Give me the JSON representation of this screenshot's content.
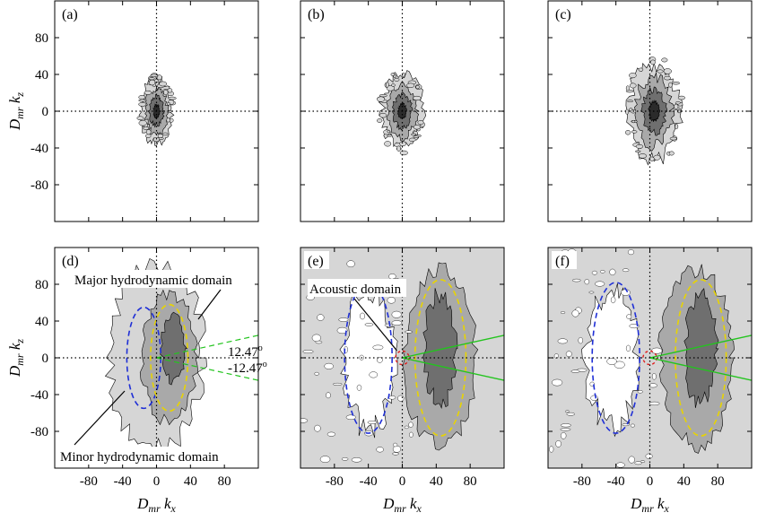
{
  "chart_data": {
    "type": "heatmap",
    "description_axes": {
      "xlabel": "D_mr k_x",
      "ylabel": "D_mr k_z",
      "x_ticks": [
        -80,
        -40,
        0,
        40,
        80
      ],
      "y_ticks": [
        80,
        40,
        0,
        -40,
        -80
      ],
      "xlim": [
        -120,
        120
      ],
      "ylim": [
        -120,
        120
      ]
    },
    "panels": [
      {
        "label": "(a)",
        "row": 0,
        "col": 0,
        "blob": {
          "cx": 0,
          "cz": 0,
          "rx": 18,
          "rz": 35,
          "levels": 4
        }
      },
      {
        "label": "(b)",
        "row": 0,
        "col": 1,
        "blob": {
          "cx": 0,
          "cz": 0,
          "rx": 24,
          "rz": 40,
          "levels": 4
        }
      },
      {
        "label": "(c)",
        "row": 0,
        "col": 2,
        "blob": {
          "cx": 5,
          "cz": 0,
          "rx": 30,
          "rz": 52,
          "levels": 4
        }
      },
      {
        "label": "(d)",
        "row": 1,
        "col": 0
      },
      {
        "label": "(e)",
        "row": 1,
        "col": 1
      },
      {
        "label": "(f)",
        "row": 1,
        "col": 2
      }
    ],
    "annotations": {
      "major": "Major hydrodynamic domain",
      "minor": "Minor hydrodynamic domain",
      "acoustic": "Acoustic domain",
      "angle_pos": "12.47",
      "angle_neg": "-12.47",
      "degree_symbol": "o"
    },
    "angle_deg": 12.47,
    "colors": {
      "level1": "#d6d6d6",
      "level2": "#a9a9a9",
      "level3": "#6f6f6f",
      "level4": "#2b2b2b",
      "minor_ellipse": "#1f2fd6",
      "major_ellipse": "#e8d400",
      "acoustic_circle": "#e01b1b",
      "angle_lines": "#23c41e"
    }
  }
}
